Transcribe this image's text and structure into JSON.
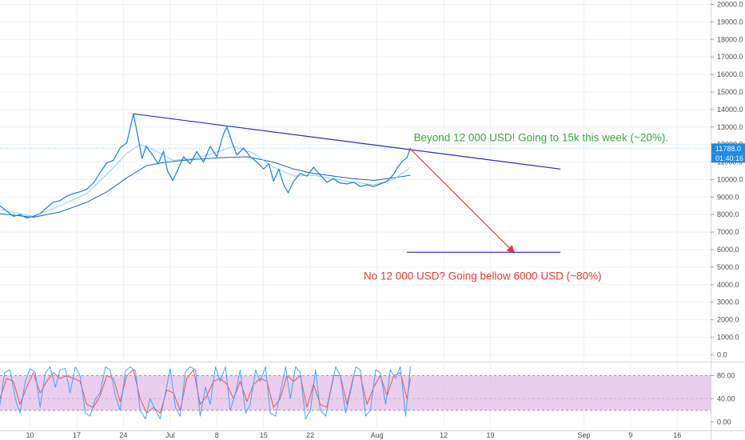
{
  "chart_data": {
    "type": "line",
    "main": {
      "y_ticks": [
        0,
        1000,
        2000,
        3000,
        4000,
        5000,
        6000,
        7000,
        8000,
        9000,
        10000,
        11000,
        12000,
        13000,
        14000,
        15000,
        16000,
        17000,
        18000,
        19000,
        20000
      ],
      "y_tick_labels": [
        "0.0",
        "1000.0",
        "2000.0",
        "3000.0",
        "4000.0",
        "5000.0",
        "6000.0",
        "7000.0",
        "8000.0",
        "9000.0",
        "10000.0",
        "11000.0",
        "12000.0",
        "13000.0",
        "14000.0",
        "15000.0",
        "16000.0",
        "17000.0",
        "18000.0",
        "19000.0",
        "20000.0"
      ],
      "ylim": [
        -300,
        20250
      ],
      "x_ticks": [
        {
          "day": 10,
          "label": "10"
        },
        {
          "day": 17,
          "label": "17"
        },
        {
          "day": 24,
          "label": "24"
        },
        {
          "day": 31,
          "label": "Jul"
        },
        {
          "day": 38,
          "label": "8"
        },
        {
          "day": 45,
          "label": "15"
        },
        {
          "day": 52,
          "label": "22"
        },
        {
          "day": 62,
          "label": "Aug"
        },
        {
          "day": 72,
          "label": "12"
        },
        {
          "day": 79,
          "label": "19"
        },
        {
          "day": 93,
          "label": "Sep"
        },
        {
          "day": 100,
          "label": "9"
        },
        {
          "day": 107,
          "label": "16"
        }
      ],
      "xlim": [
        5.5,
        112
      ],
      "price_series": {
        "name": "",
        "color": "#1e88e5",
        "points": [
          [
            5.5,
            8500
          ],
          [
            6.5,
            8200
          ],
          [
            7.5,
            7900
          ],
          [
            8.5,
            8000
          ],
          [
            9.5,
            7800
          ],
          [
            10.5,
            7900
          ],
          [
            11.5,
            8050
          ],
          [
            12.5,
            8400
          ],
          [
            13.5,
            8700
          ],
          [
            14.5,
            8800
          ],
          [
            15.5,
            9050
          ],
          [
            16.5,
            9200
          ],
          [
            17.5,
            9300
          ],
          [
            18.5,
            9450
          ],
          [
            19.5,
            9800
          ],
          [
            20.5,
            10400
          ],
          [
            21.5,
            10950
          ],
          [
            22.5,
            11100
          ],
          [
            23.5,
            11800
          ],
          [
            24.5,
            12100
          ],
          [
            25.5,
            13750
          ],
          [
            26.2,
            12400
          ],
          [
            26.8,
            11200
          ],
          [
            27.4,
            11900
          ],
          [
            28.2,
            11500
          ],
          [
            29.2,
            10900
          ],
          [
            30,
            11600
          ],
          [
            30.6,
            10500
          ],
          [
            31.4,
            9950
          ],
          [
            32.2,
            10600
          ],
          [
            33,
            11300
          ],
          [
            34,
            10900
          ],
          [
            35,
            11600
          ],
          [
            36,
            11000
          ],
          [
            37,
            11900
          ],
          [
            38,
            11300
          ],
          [
            39,
            12600
          ],
          [
            39.5,
            13000
          ],
          [
            40.3,
            12100
          ],
          [
            41,
            11400
          ],
          [
            42,
            11800
          ],
          [
            43,
            11300
          ],
          [
            44,
            11000
          ],
          [
            45,
            10600
          ],
          [
            45.8,
            10900
          ],
          [
            46.5,
            9900
          ],
          [
            47.3,
            10600
          ],
          [
            48,
            9700
          ],
          [
            48.7,
            9250
          ],
          [
            49.5,
            9900
          ],
          [
            50.5,
            10350
          ],
          [
            51.5,
            10200
          ],
          [
            52.5,
            10700
          ],
          [
            53.5,
            10250
          ],
          [
            54.5,
            9850
          ],
          [
            55.5,
            10050
          ],
          [
            56.5,
            9800
          ],
          [
            57.5,
            9750
          ],
          [
            58.5,
            9850
          ],
          [
            59.5,
            9600
          ],
          [
            60.5,
            9700
          ],
          [
            61.5,
            9600
          ],
          [
            62.5,
            9750
          ],
          [
            63.5,
            9900
          ],
          [
            64.5,
            10300
          ],
          [
            65,
            10650
          ],
          [
            65.8,
            11050
          ],
          [
            66.5,
            11250
          ],
          [
            67,
            11800
          ]
        ]
      },
      "ma_fast": {
        "name": "",
        "color": "#90caf9",
        "points": [
          [
            5.5,
            8300
          ],
          [
            10.5,
            7900
          ],
          [
            14.5,
            8500
          ],
          [
            18.5,
            9200
          ],
          [
            21.5,
            10300
          ],
          [
            24.5,
            11500
          ],
          [
            26.5,
            12000
          ],
          [
            28.5,
            11700
          ],
          [
            31.5,
            11100
          ],
          [
            34.5,
            11200
          ],
          [
            37.5,
            11500
          ],
          [
            40.5,
            11900
          ],
          [
            43.5,
            11500
          ],
          [
            46.5,
            10700
          ],
          [
            49.5,
            10200
          ],
          [
            52.5,
            10250
          ],
          [
            55.5,
            10050
          ],
          [
            58.5,
            9850
          ],
          [
            61.5,
            9700
          ],
          [
            64.5,
            10000
          ],
          [
            67,
            10700
          ]
        ]
      },
      "ma_slow": {
        "name": "",
        "color": "#1565c0",
        "points": [
          [
            5.5,
            8050
          ],
          [
            10.5,
            7850
          ],
          [
            14.5,
            8150
          ],
          [
            18.5,
            8700
          ],
          [
            21.5,
            9300
          ],
          [
            24.5,
            10100
          ],
          [
            27.5,
            10800
          ],
          [
            30.5,
            11000
          ],
          [
            34.5,
            11150
          ],
          [
            38.5,
            11250
          ],
          [
            42.5,
            11300
          ],
          [
            46.5,
            11000
          ],
          [
            49.5,
            10600
          ],
          [
            52.5,
            10350
          ],
          [
            55.5,
            10200
          ],
          [
            58.5,
            10050
          ],
          [
            61.5,
            9950
          ],
          [
            64.5,
            10100
          ],
          [
            67,
            10250
          ]
        ]
      },
      "current_price_level": 11788,
      "price_label": "11788.0",
      "countdown_label": "01:40:16",
      "drawings": [
        {
          "kind": "trendline",
          "color": "#2b2bb8",
          "from": [
            25.5,
            13750
          ],
          "to": [
            89.5,
            10600
          ]
        },
        {
          "kind": "arrow",
          "color": "#e53935",
          "from": [
            67,
            11750
          ],
          "to": [
            82.5,
            5850
          ]
        },
        {
          "kind": "hline",
          "color": "#2b2bb8",
          "from": [
            66.5,
            5850
          ],
          "to": [
            89.5,
            5850
          ]
        }
      ],
      "annotations": [
        {
          "text": "Beyond 12 000 USD! Going to 15k this week (~20%).",
          "color": "#43a047",
          "day": 67.5,
          "value": 12200
        },
        {
          "text": "No 12 000 USD? Going bellow 6000 USD (~80%)",
          "color": "#e53935",
          "day": 60,
          "value": 4300
        }
      ]
    },
    "indicator": {
      "type": "line",
      "y_ticks": [
        0,
        40,
        80
      ],
      "y_tick_labels": [
        "0.00",
        "40.00",
        "80.00"
      ],
      "ylim": [
        -12,
        100
      ],
      "band": {
        "lower": 20,
        "upper": 80,
        "color": "#e1bee7"
      },
      "k_series": {
        "name": "",
        "color": "#42a5f5",
        "points": [
          [
            5.5,
            30
          ],
          [
            6.2,
            85
          ],
          [
            7,
            90
          ],
          [
            7.8,
            40
          ],
          [
            8.5,
            15
          ],
          [
            9.3,
            70
          ],
          [
            10,
            92
          ],
          [
            10.8,
            85
          ],
          [
            11.5,
            25
          ],
          [
            12.3,
            85
          ],
          [
            13,
            95
          ],
          [
            13.8,
            60
          ],
          [
            14.5,
            90
          ],
          [
            15.3,
            92
          ],
          [
            16,
            50
          ],
          [
            16.8,
            95
          ],
          [
            17.5,
            80
          ],
          [
            18.3,
            15
          ],
          [
            19,
            10
          ],
          [
            19.8,
            40
          ],
          [
            20.5,
            50
          ],
          [
            21.3,
            95
          ],
          [
            22,
            90
          ],
          [
            22.8,
            45
          ],
          [
            23.5,
            20
          ],
          [
            24.3,
            88
          ],
          [
            25,
            95
          ],
          [
            25.8,
            88
          ],
          [
            26.5,
            20
          ],
          [
            27.3,
            5
          ],
          [
            28,
            40
          ],
          [
            28.8,
            20
          ],
          [
            29.5,
            5
          ],
          [
            30.3,
            50
          ],
          [
            31,
            92
          ],
          [
            31.8,
            25
          ],
          [
            32.5,
            10
          ],
          [
            33.3,
            88
          ],
          [
            34,
            95
          ],
          [
            34.8,
            90
          ],
          [
            35.5,
            10
          ],
          [
            36.3,
            60
          ],
          [
            37,
            30
          ],
          [
            37.8,
            95
          ],
          [
            38.5,
            70
          ],
          [
            39.3,
            95
          ],
          [
            40,
            20
          ],
          [
            40.8,
            50
          ],
          [
            41.5,
            90
          ],
          [
            42.3,
            15
          ],
          [
            43,
            30
          ],
          [
            43.8,
            90
          ],
          [
            44.5,
            70
          ],
          [
            45.3,
            95
          ],
          [
            46,
            15
          ],
          [
            46.8,
            10
          ],
          [
            47.5,
            50
          ],
          [
            48.3,
            95
          ],
          [
            49,
            40
          ],
          [
            49.8,
            95
          ],
          [
            50.5,
            85
          ],
          [
            51.3,
            5
          ],
          [
            52,
            20
          ],
          [
            52.8,
            90
          ],
          [
            53.5,
            20
          ],
          [
            54.3,
            10
          ],
          [
            55,
            50
          ],
          [
            55.8,
            95
          ],
          [
            56.5,
            80
          ],
          [
            57.3,
            15
          ],
          [
            58,
            50
          ],
          [
            58.8,
            95
          ],
          [
            59.5,
            90
          ],
          [
            60.3,
            10
          ],
          [
            61,
            20
          ],
          [
            61.8,
            90
          ],
          [
            62.5,
            85
          ],
          [
            63.3,
            30
          ],
          [
            64,
            90
          ],
          [
            64.8,
            75
          ],
          [
            65.5,
            95
          ],
          [
            66.3,
            10
          ],
          [
            67,
            95
          ]
        ]
      },
      "d_series": {
        "name": "",
        "color": "#ef5350",
        "points": [
          [
            5.5,
            40
          ],
          [
            6.5,
            75
          ],
          [
            7.5,
            70
          ],
          [
            8.5,
            30
          ],
          [
            9.5,
            60
          ],
          [
            10.5,
            85
          ],
          [
            11.5,
            50
          ],
          [
            12.5,
            70
          ],
          [
            13.5,
            85
          ],
          [
            14.5,
            75
          ],
          [
            15.5,
            80
          ],
          [
            16.5,
            75
          ],
          [
            17.5,
            70
          ],
          [
            18.5,
            30
          ],
          [
            19.5,
            25
          ],
          [
            20.5,
            45
          ],
          [
            21.5,
            80
          ],
          [
            22.5,
            75
          ],
          [
            23.5,
            35
          ],
          [
            24.5,
            80
          ],
          [
            25.5,
            90
          ],
          [
            26.5,
            40
          ],
          [
            27.5,
            15
          ],
          [
            28.5,
            25
          ],
          [
            29.5,
            15
          ],
          [
            30.5,
            55
          ],
          [
            31.5,
            50
          ],
          [
            32.5,
            20
          ],
          [
            33.5,
            75
          ],
          [
            34.5,
            90
          ],
          [
            35.5,
            30
          ],
          [
            36.5,
            45
          ],
          [
            37.5,
            70
          ],
          [
            38.5,
            75
          ],
          [
            39.5,
            65
          ],
          [
            40.5,
            40
          ],
          [
            41.5,
            70
          ],
          [
            42.5,
            35
          ],
          [
            43.5,
            65
          ],
          [
            44.5,
            75
          ],
          [
            45.5,
            70
          ],
          [
            46.5,
            25
          ],
          [
            47.5,
            40
          ],
          [
            48.5,
            80
          ],
          [
            49.5,
            70
          ],
          [
            50.5,
            80
          ],
          [
            51.5,
            25
          ],
          [
            52.5,
            65
          ],
          [
            53.5,
            30
          ],
          [
            54.5,
            25
          ],
          [
            55.5,
            80
          ],
          [
            56.5,
            80
          ],
          [
            57.5,
            30
          ],
          [
            58.5,
            80
          ],
          [
            59.5,
            80
          ],
          [
            60.5,
            30
          ],
          [
            61.5,
            60
          ],
          [
            62.5,
            80
          ],
          [
            63.5,
            45
          ],
          [
            64.5,
            80
          ],
          [
            65.5,
            85
          ],
          [
            66.5,
            40
          ],
          [
            67,
            75
          ]
        ]
      }
    }
  }
}
